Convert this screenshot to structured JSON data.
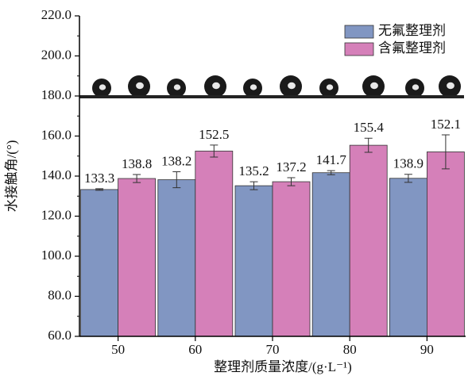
{
  "chart_data": {
    "type": "bar",
    "xlabel": "整理剂质量浓度/(g·L⁻¹)",
    "ylabel": "水接触角/(°)",
    "categories": [
      "50",
      "60",
      "70",
      "80",
      "90"
    ],
    "series": [
      {
        "name": "无氟整理剂",
        "color": "#8196c2",
        "values": [
          133.3,
          138.2,
          135.2,
          141.7,
          138.9
        ],
        "errors": [
          0.4,
          4,
          2,
          1,
          2
        ]
      },
      {
        "name": "含氟整理剂",
        "color": "#d580b9",
        "values": [
          138.8,
          152.5,
          137.2,
          155.4,
          152.1
        ],
        "errors": [
          2,
          3,
          2,
          3.5,
          8.5
        ]
      }
    ],
    "ylim": [
      60,
      220
    ],
    "yticks": [
      {
        "value": 60,
        "label": "60.0"
      },
      {
        "value": 80,
        "label": "80.0"
      },
      {
        "value": 100,
        "label": "100.0"
      },
      {
        "value": 120,
        "label": "120.0"
      },
      {
        "value": 140,
        "label": "140.0"
      },
      {
        "value": 160,
        "label": "160.0"
      },
      {
        "value": 180,
        "label": "180.0"
      },
      {
        "value": 200,
        "label": "200.0"
      },
      {
        "value": 220,
        "label": "220.0"
      }
    ],
    "legend": "upper right"
  }
}
